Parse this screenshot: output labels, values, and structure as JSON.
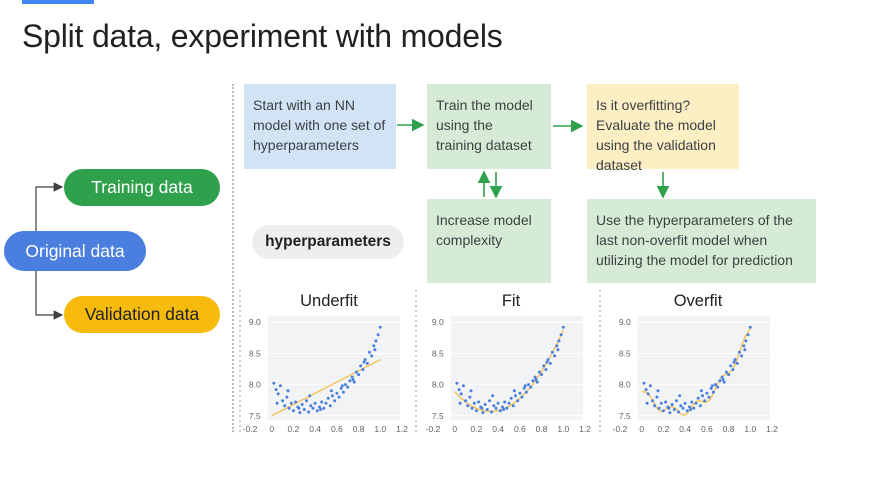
{
  "header": {
    "title": "Split data, experiment with models"
  },
  "colors": {
    "accent": "#4285f4",
    "blue": "#4a7fe0",
    "green": "#2fa04b",
    "yellow": "#f7bb0e",
    "arrow": "#2fa04b",
    "points": "#4a7fe0",
    "fit_line": "#f3c35a"
  },
  "data_split": {
    "original": "Original data",
    "training": "Training data",
    "validation": "Validation data"
  },
  "hyper_label": "hyperparameters",
  "flow": {
    "start": "Start with an NN model with one set of hyperparameters",
    "train": "Train the model using the training dataset",
    "overfit": "Is it overfitting? Evaluate the model using the validation dataset",
    "increase": "Increase model complexity",
    "use": "Use the hyperparameters of the last non-overfit model when utilizing the model for prediction"
  },
  "chart_data": [
    {
      "type": "scatter",
      "title": "Underfit",
      "x_ticks": [
        "-0.2",
        "0",
        "0.2",
        "0.4",
        "0.6",
        "0.8",
        "1.0",
        "1.2"
      ],
      "y_ticks": [
        "7.5",
        "8.0",
        "8.5",
        "9.0"
      ],
      "xlim": [
        -0.2,
        1.2
      ],
      "ylim": [
        7.4,
        9.1
      ],
      "fit": "linear",
      "fit_line": {
        "x": [
          0.0,
          1.0
        ],
        "y": [
          7.5,
          8.4
        ]
      }
    },
    {
      "type": "scatter",
      "title": "Fit",
      "x_ticks": [
        "-0.2",
        "0",
        "0.2",
        "0.4",
        "0.6",
        "0.8",
        "1.0",
        "1.2"
      ],
      "y_ticks": [
        "7.5",
        "8.0",
        "8.5",
        "9.0"
      ],
      "xlim": [
        -0.2,
        1.2
      ],
      "ylim": [
        7.4,
        9.1
      ],
      "fit": "quadratic"
    },
    {
      "type": "scatter",
      "title": "Overfit",
      "x_ticks": [
        "-0.2",
        "0",
        "0.2",
        "0.4",
        "0.6",
        "0.8",
        "1.0",
        "1.2"
      ],
      "y_ticks": [
        "7.5",
        "8.0",
        "8.5",
        "9.0"
      ],
      "xlim": [
        -0.2,
        1.2
      ],
      "ylim": [
        7.4,
        9.1
      ],
      "fit": "wiggly"
    }
  ],
  "scatter_points": {
    "x": [
      0.02,
      0.04,
      0.06,
      0.08,
      0.1,
      0.12,
      0.14,
      0.16,
      0.18,
      0.2,
      0.22,
      0.24,
      0.26,
      0.28,
      0.3,
      0.32,
      0.34,
      0.36,
      0.38,
      0.4,
      0.42,
      0.44,
      0.46,
      0.48,
      0.5,
      0.52,
      0.54,
      0.56,
      0.58,
      0.6,
      0.62,
      0.64,
      0.66,
      0.68,
      0.7,
      0.72,
      0.74,
      0.76,
      0.78,
      0.8,
      0.82,
      0.84,
      0.86,
      0.88,
      0.9,
      0.92,
      0.94,
      0.96,
      0.98,
      1.0,
      0.05,
      0.15,
      0.25,
      0.35,
      0.45,
      0.55,
      0.65,
      0.75,
      0.85,
      0.95
    ],
    "y": [
      8.02,
      7.92,
      7.85,
      7.98,
      7.74,
      7.66,
      7.8,
      7.62,
      7.7,
      7.58,
      7.72,
      7.64,
      7.55,
      7.68,
      7.6,
      7.74,
      7.56,
      7.66,
      7.62,
      7.7,
      7.58,
      7.64,
      7.72,
      7.62,
      7.7,
      7.78,
      7.66,
      7.82,
      7.74,
      7.86,
      7.8,
      7.94,
      7.88,
      8.0,
      7.96,
      8.06,
      8.12,
      8.04,
      8.2,
      8.16,
      8.3,
      8.24,
      8.4,
      8.34,
      8.52,
      8.46,
      8.62,
      8.7,
      8.8,
      8.92,
      7.7,
      7.9,
      7.62,
      7.82,
      7.6,
      7.9,
      7.98,
      8.08,
      8.36,
      8.56
    ]
  }
}
